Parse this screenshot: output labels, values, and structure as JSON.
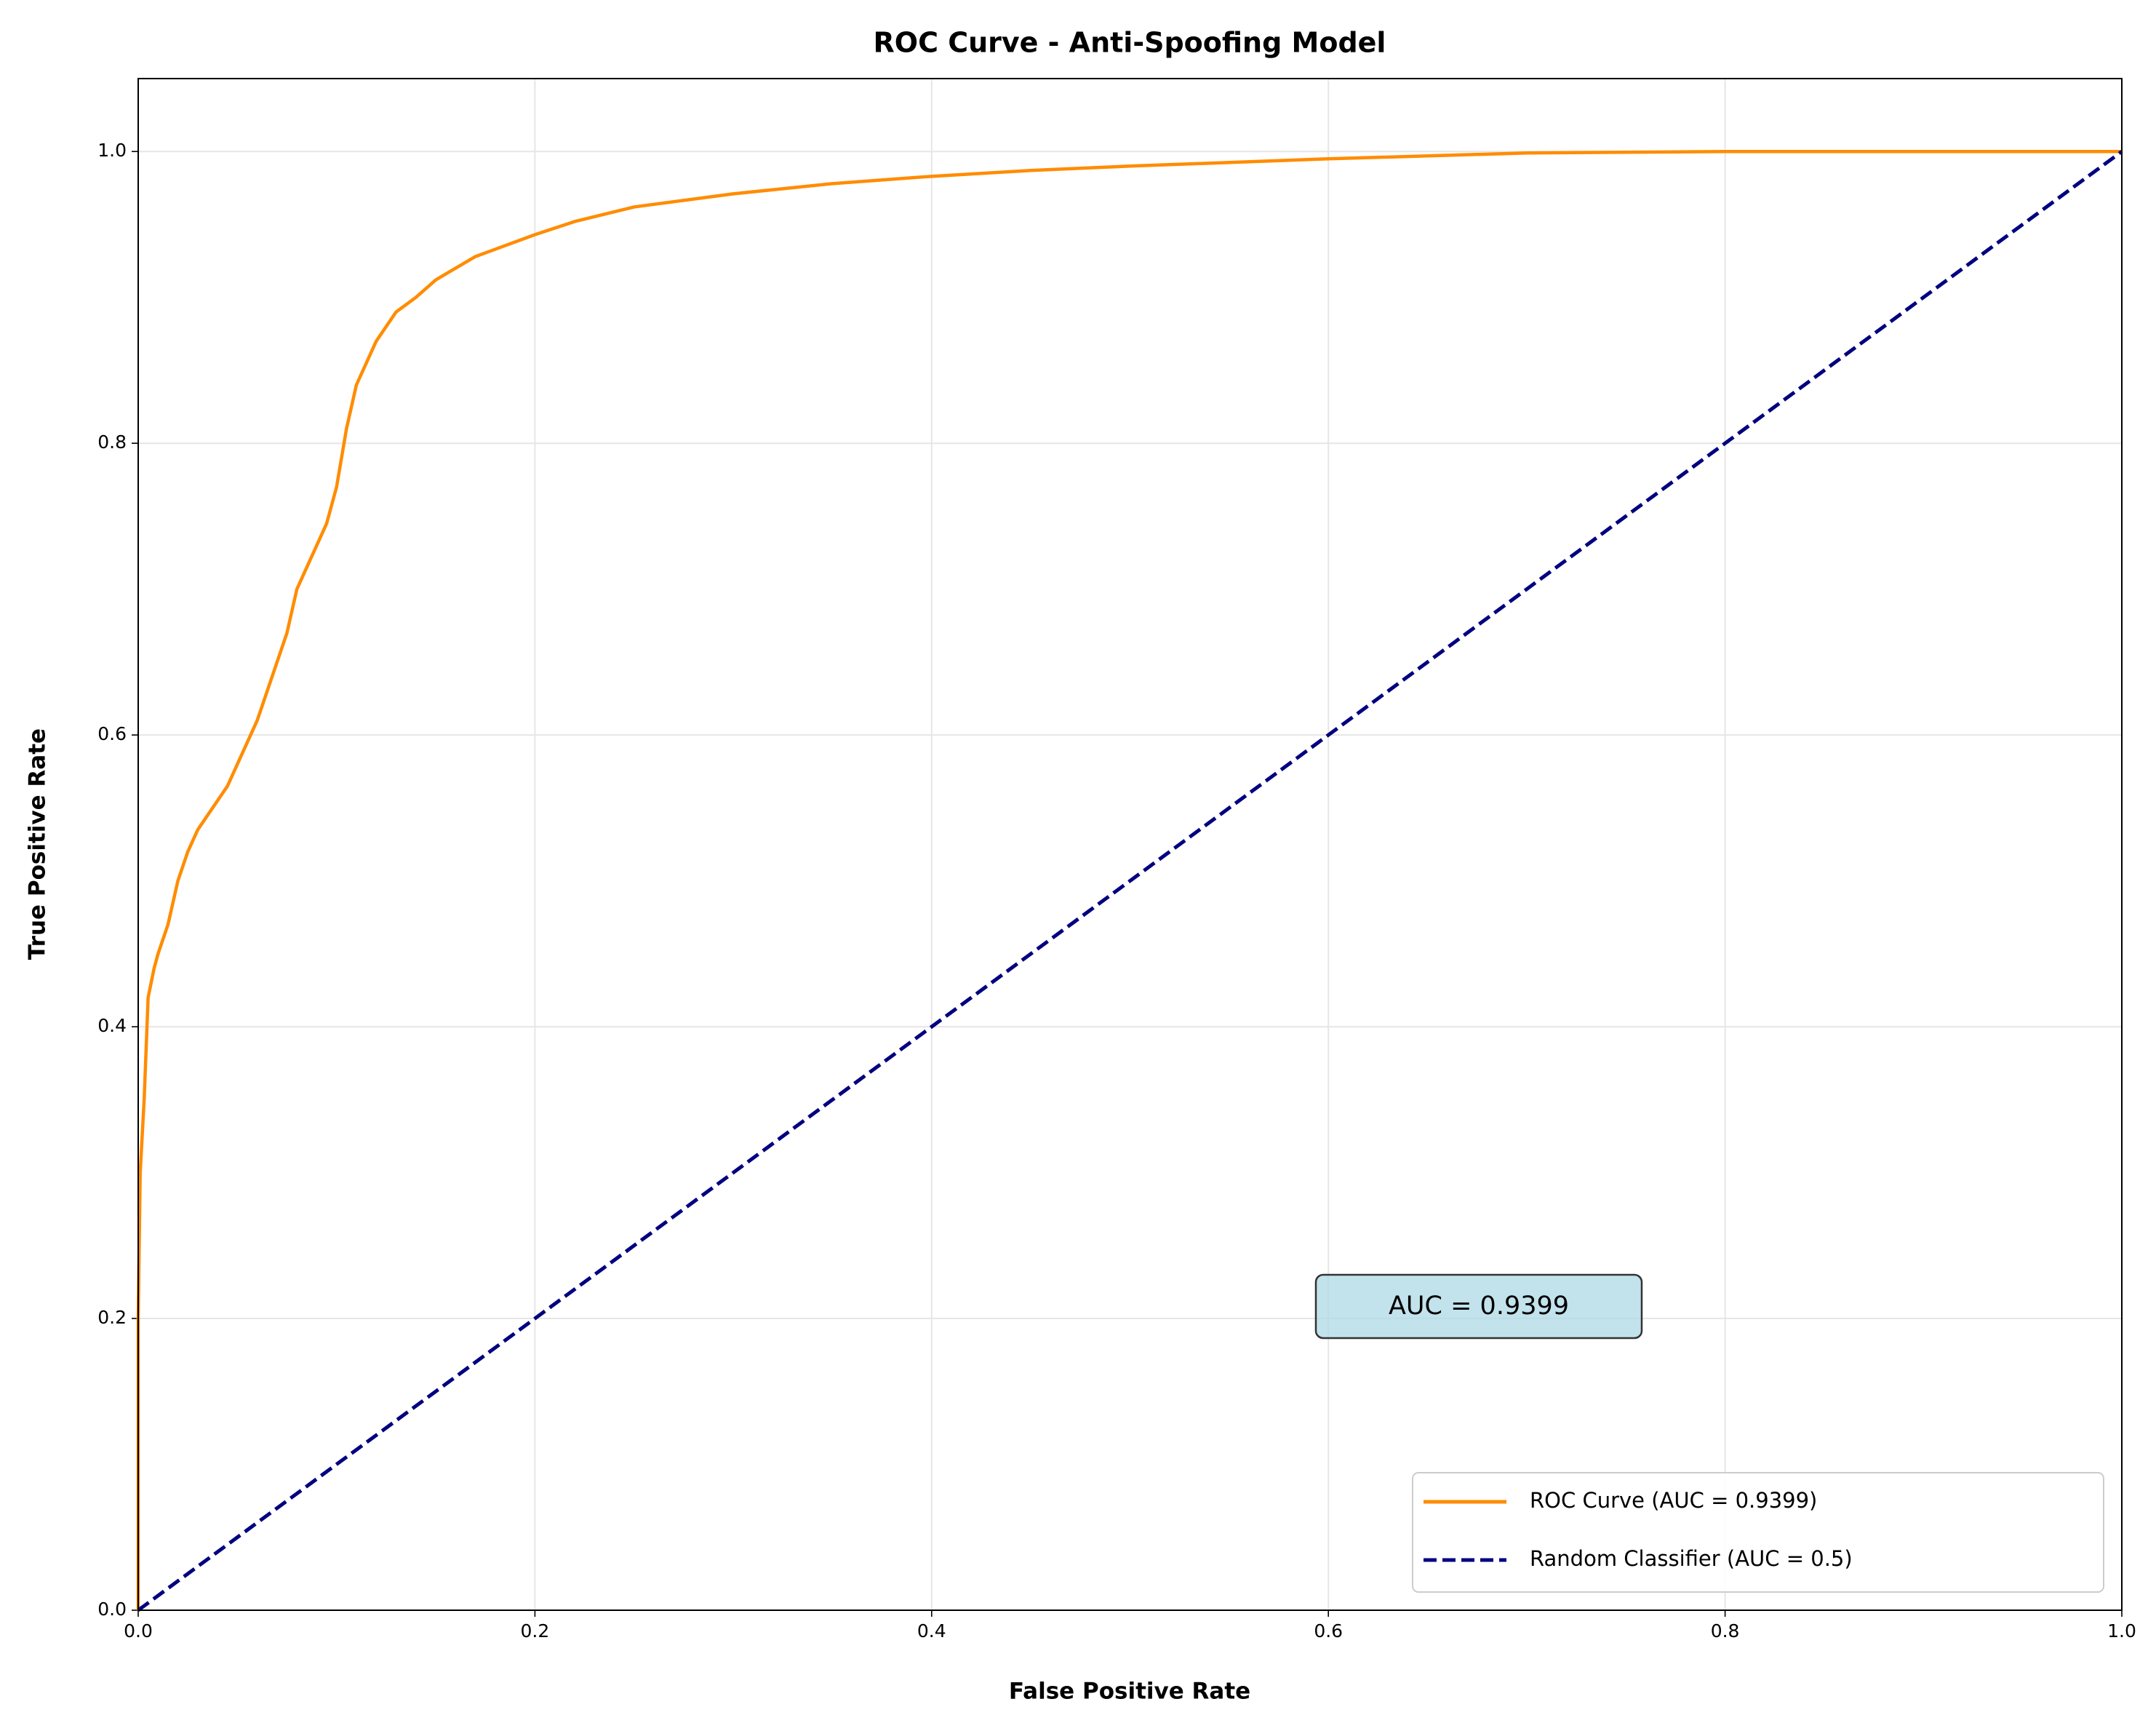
{
  "chart_data": {
    "type": "line",
    "title": "ROC Curve - Anti-Spoofing Model",
    "x_label": "False Positive Rate",
    "y_label": "True Positive Rate",
    "annotation": "AUC = 0.9399",
    "xlim": [
      0,
      1
    ],
    "ylim": [
      0,
      1.05
    ],
    "xticks": [
      {
        "value": 0,
        "label": "0.0"
      },
      0.2,
      0.4,
      0.6,
      0.8,
      {
        "value": 1,
        "label": "1.0"
      }
    ],
    "yticks": [
      {
        "value": 0,
        "label": "0.0"
      },
      0.2,
      0.4,
      0.6,
      0.8,
      {
        "value": 1,
        "label": "1.0"
      }
    ],
    "grid": true,
    "legend_position": "lower right",
    "series": [
      {
        "name": "ROC Curve (AUC = 0.9399)",
        "color": "#ff8c00",
        "style": "solid",
        "x": [
          0,
          0,
          0.001,
          0.003,
          0.005,
          0.008,
          0.01,
          0.015,
          0.02,
          0.025,
          0.03,
          0.035,
          0.04,
          0.045,
          0.05,
          0.055,
          0.06,
          0.065,
          0.07,
          0.075,
          0.08,
          0.085,
          0.09,
          0.095,
          0.1,
          0.105,
          0.11,
          0.115,
          0.12,
          0.125,
          0.13,
          0.14,
          0.15,
          0.16,
          0.17,
          0.18,
          0.2,
          0.22,
          0.25,
          0.3,
          0.35,
          0.4,
          0.45,
          0.5,
          0.6,
          0.7,
          0.8,
          1
        ],
        "values": [
          0,
          0.2,
          0.3,
          0.35,
          0.42,
          0.44,
          0.45,
          0.47,
          0.5,
          0.52,
          0.535,
          0.545,
          0.555,
          0.565,
          0.58,
          0.595,
          0.61,
          0.63,
          0.65,
          0.67,
          0.7,
          0.715,
          0.73,
          0.745,
          0.77,
          0.81,
          0.84,
          0.855,
          0.87,
          0.88,
          0.89,
          0.9,
          0.912,
          0.92,
          0.928,
          0.933,
          0.943,
          0.952,
          0.962,
          0.971,
          0.978,
          0.983,
          0.987,
          0.99,
          0.995,
          0.999,
          1,
          1
        ]
      },
      {
        "name": "Random Classifier (AUC = 0.5)",
        "color": "#000080",
        "style": "dashed",
        "x": [
          0,
          1
        ],
        "values": [
          0,
          1
        ]
      }
    ]
  }
}
